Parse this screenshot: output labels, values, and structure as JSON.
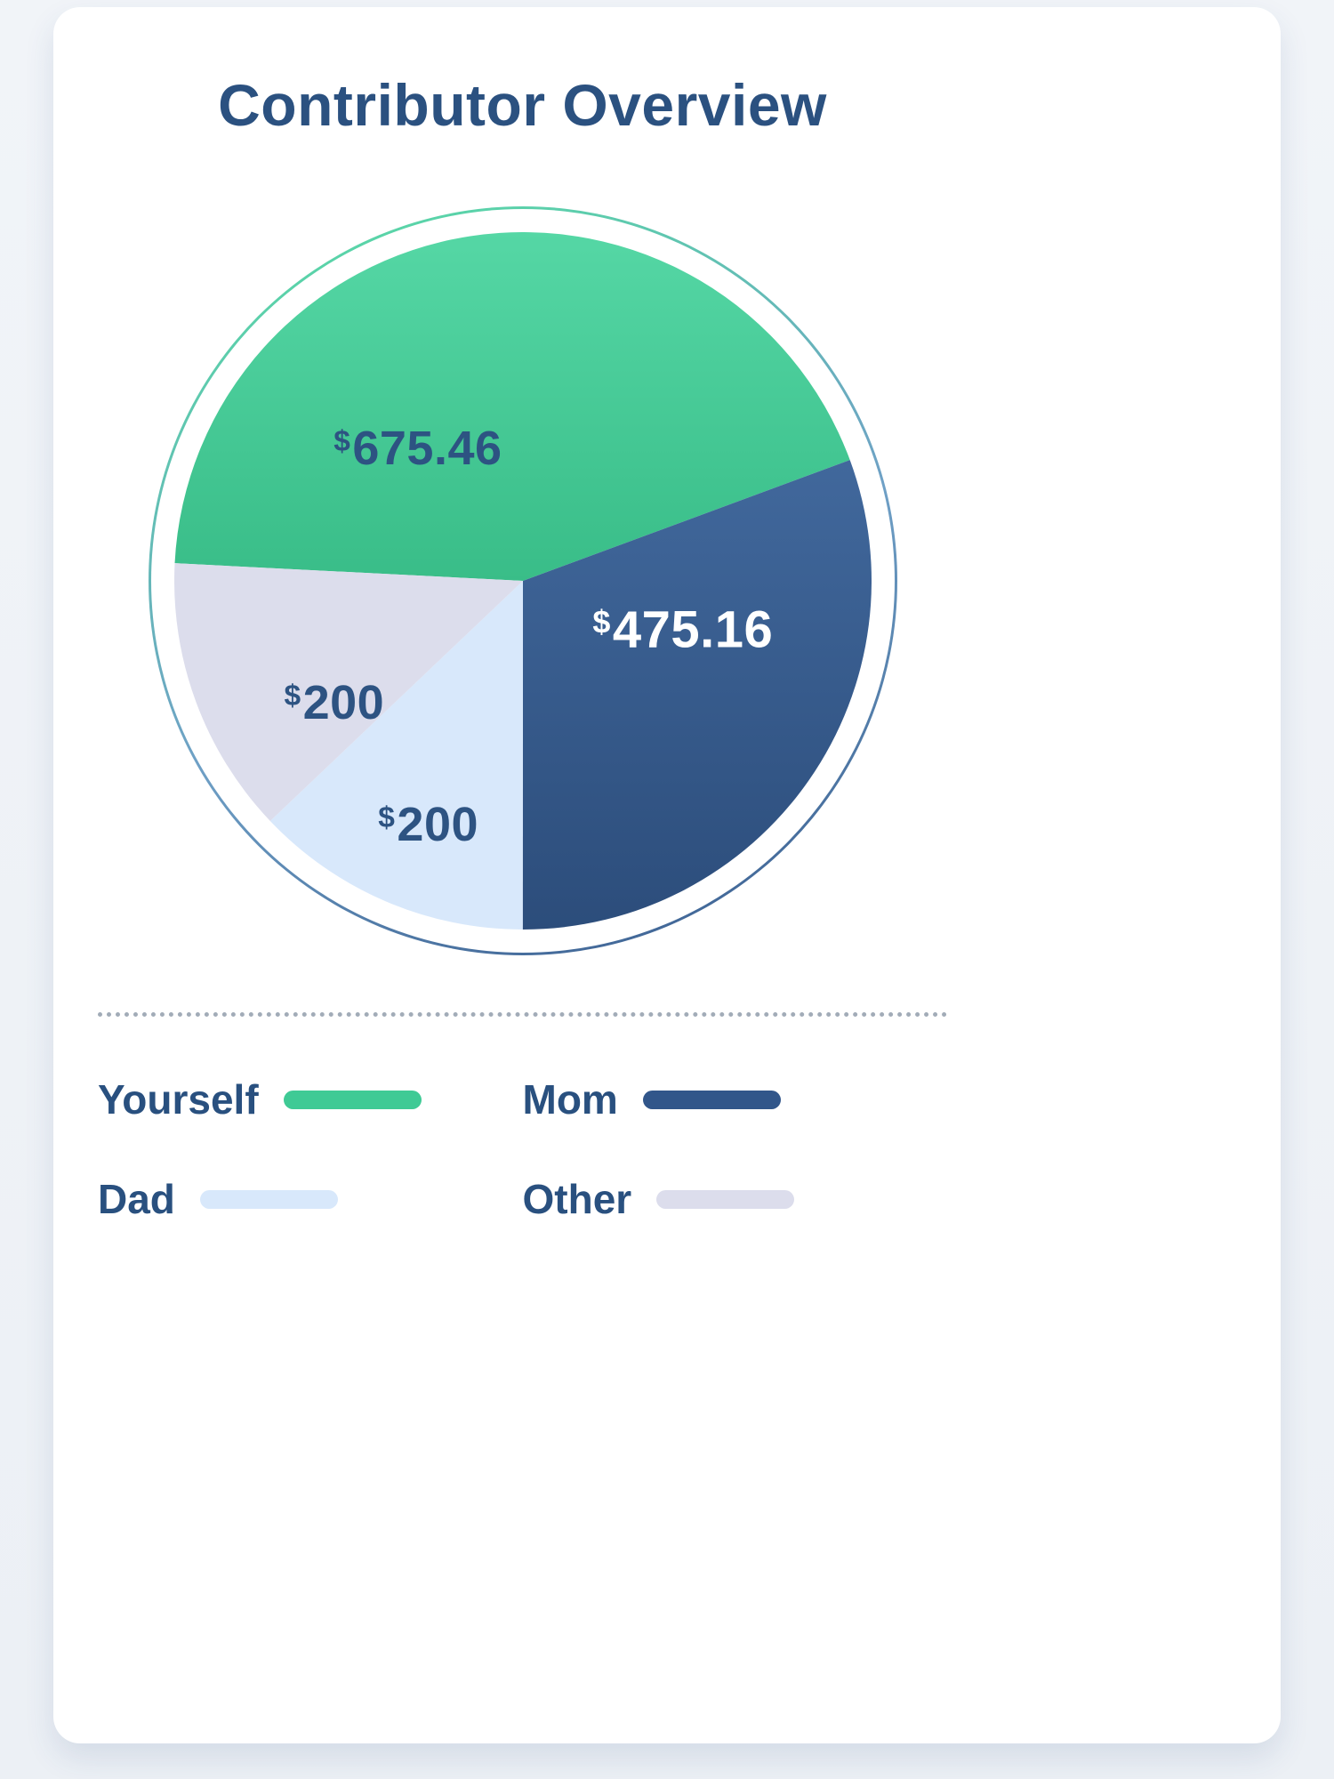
{
  "card": {
    "title": "Contributor Overview"
  },
  "chart_data": {
    "type": "pie",
    "title": "Contributor Overview",
    "total": 1550.62,
    "start_angle_deg": 272.9,
    "legend_position": "bottom",
    "segments": [
      {
        "label": "Yourself",
        "currency": "$",
        "value": 675.46,
        "display": "675.46",
        "color": "#3FCA95",
        "color_from": "#55D7A5",
        "color_to": "#39BD88",
        "label_color": "#2D5382"
      },
      {
        "label": "Mom",
        "currency": "$",
        "value": 475.16,
        "display": "475.16",
        "color": "#31568A",
        "color_from": "#41689C",
        "color_to": "#2C4D7B",
        "label_color": "#FFFFFF"
      },
      {
        "label": "Dad",
        "currency": "$",
        "value": 200,
        "display": "200",
        "color": "#D8E8FB",
        "label_color": "#2D5382"
      },
      {
        "label": "Other",
        "currency": "$",
        "value": 200,
        "display": "200",
        "color": "#DCDDEC",
        "label_color": "#2D5382"
      }
    ]
  }
}
